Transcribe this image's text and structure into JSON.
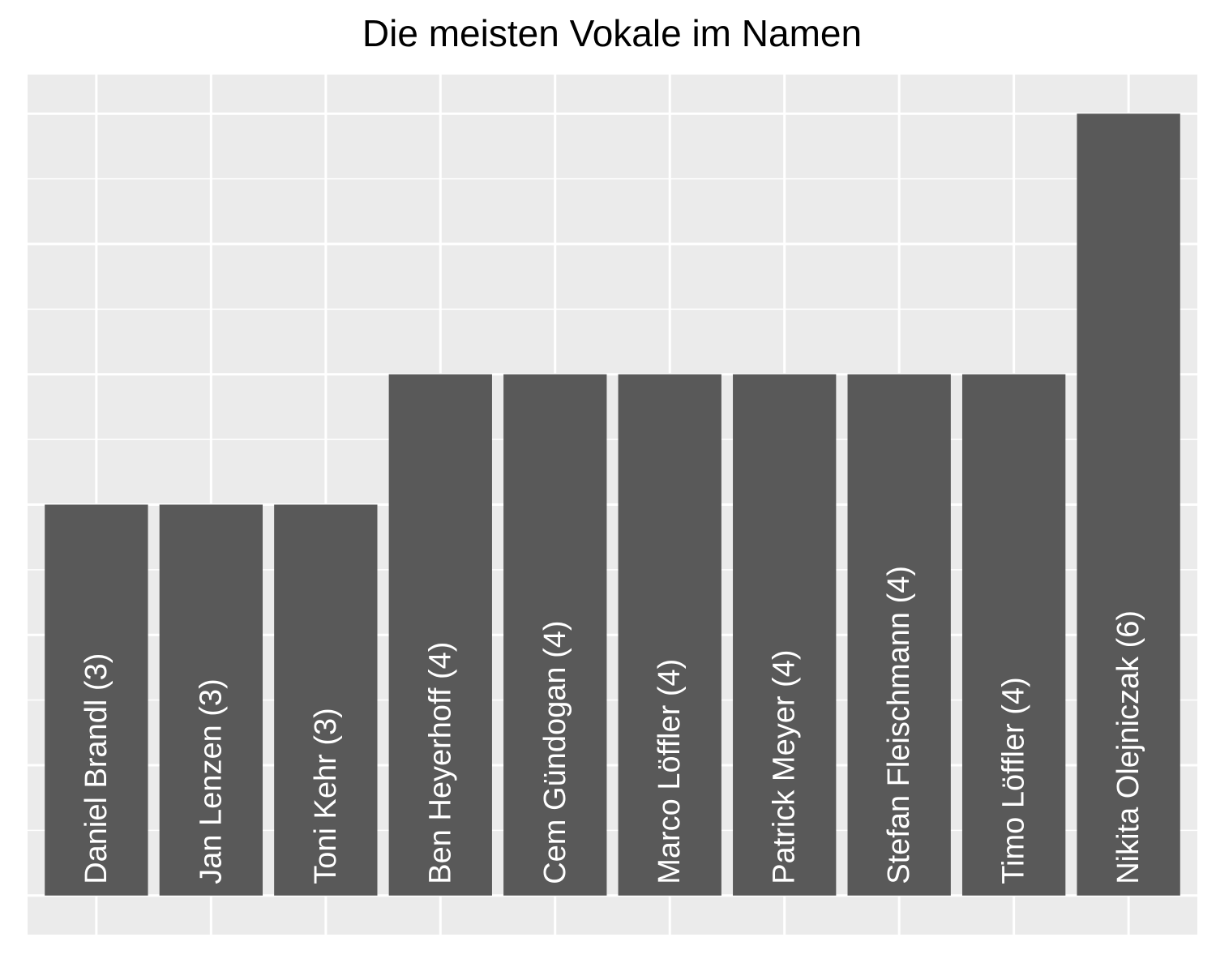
{
  "chart_data": {
    "type": "bar",
    "title": "Die meisten Vokale im Namen",
    "xlabel": "",
    "ylabel": "",
    "categories": [
      "Daniel Brandl",
      "Jan Lenzen",
      "Toni Kehr",
      "Ben Heyerhoff",
      "Cem Gündogan",
      "Marco Löffler",
      "Patrick Meyer",
      "Stefan Fleischmann",
      "Timo Löffler",
      "Nikita Olejniczak"
    ],
    "values": [
      3,
      3,
      3,
      4,
      4,
      4,
      4,
      4,
      4,
      6
    ],
    "labels": [
      "Daniel Brandl (3)",
      "Jan Lenzen (3)",
      "Toni Kehr (3)",
      "Ben Heyerhoff (4)",
      "Cem Gündogan (4)",
      "Marco Löffler (4)",
      "Patrick Meyer (4)",
      "Stefan Fleischmann (4)",
      "Timo Löffler (4)",
      "Nikita Olejniczak (6)"
    ],
    "ylim": [
      -0.3,
      6.3
    ],
    "grid": true,
    "legend": "none",
    "colors": {
      "bar": "#595959",
      "panel": "#EBEBEB",
      "grid": "#FFFFFF",
      "label": "#FFFFFF"
    }
  }
}
